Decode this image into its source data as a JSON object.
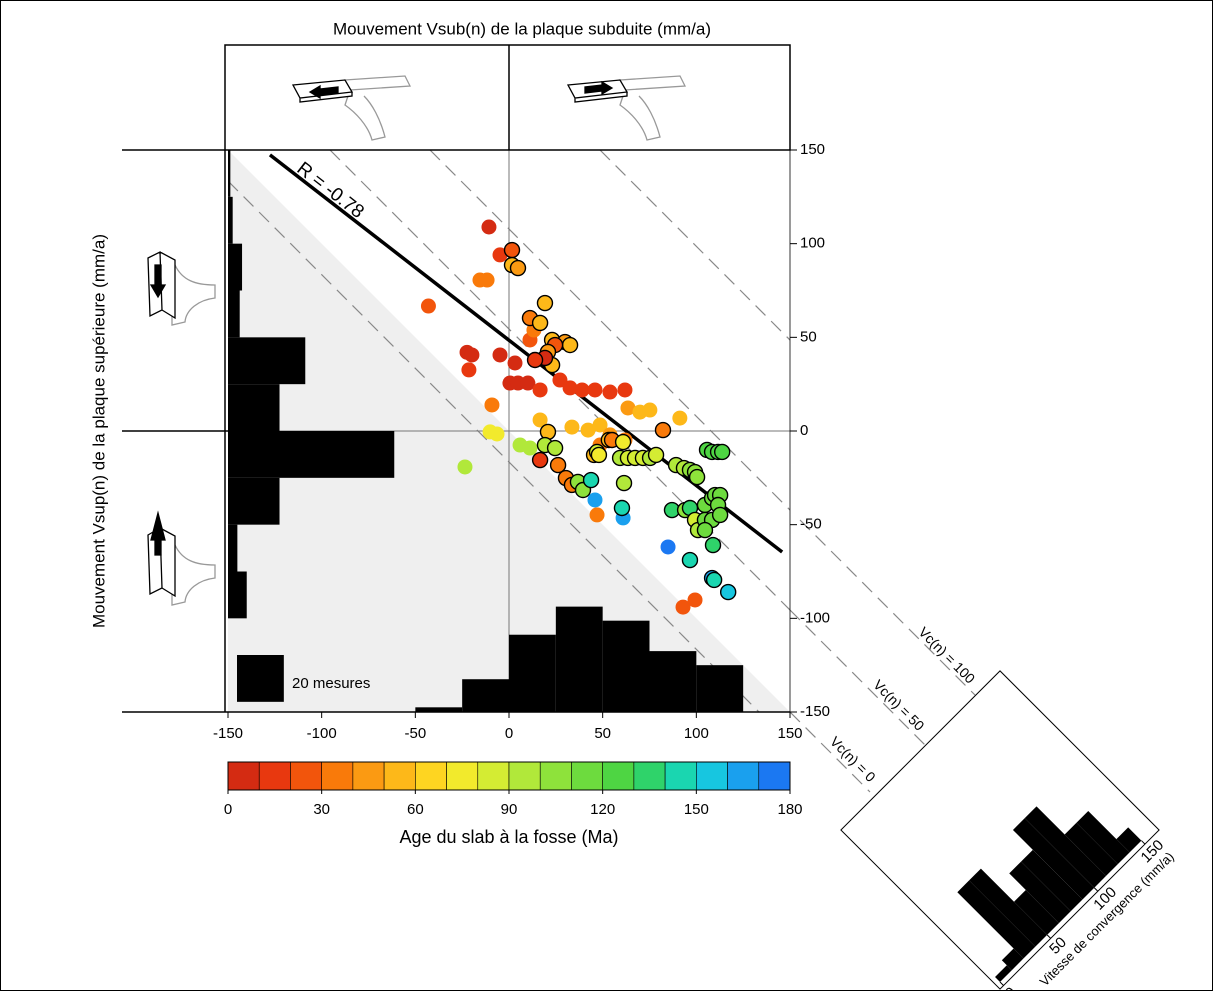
{
  "chart_data": {
    "type": "scatter",
    "title": "Mouvement Vsub(n) de la plaque subduite (mm/a)",
    "y_label": "Mouvement Vsup(n) de la plaque supérieure (mm/a)",
    "xlim": [
      -150,
      150
    ],
    "ylim": [
      -150,
      150
    ],
    "xticks": [
      -150,
      -100,
      -50,
      0,
      50,
      100,
      150
    ],
    "yticks": [
      -150,
      -100,
      -50,
      0,
      50,
      100,
      150
    ],
    "points": {
      "x": [
        -10.7,
        -4.8,
        -15.5,
        -11.7,
        -43,
        -22.4,
        -19.8,
        -21.4,
        -4.8,
        3.2,
        0.5,
        4.8,
        10.1,
        16.6,
        27.2,
        32.6,
        39,
        45.9,
        53.9,
        61.9,
        11.2,
        13.3,
        -9.1,
        16.6,
        33.6,
        42.2,
        48.6,
        63.5,
        69.9,
        75.2,
        91.2,
        53.9,
        48.6,
        61.9,
        -10.1,
        -6.4,
        -23.5,
        5.9,
        11.2,
        45.9,
        47,
        60.9,
        84.9,
        1.6,
        1.6,
        4.8,
        19.2,
        11.2,
        16.6,
        23,
        29.9,
        32.6,
        24.6,
        20.8,
        23,
        19.2,
        13.9,
        82.2,
        20.8,
        19.2,
        24.6,
        16.6,
        26.2,
        30.4,
        33.6,
        36.8,
        39.5,
        43.8,
        45.4,
        47,
        48,
        53.3,
        55,
        60.9,
        59.3,
        63.5,
        67.3,
        71.5,
        75.3,
        78.5,
        61.4,
        60.3,
        89.2,
        93.4,
        96.6,
        99.3,
        100.4,
        105.7,
        108.4,
        111.6,
        113.8,
        87,
        94,
        96.6,
        99.3,
        100.9,
        104.6,
        108.4,
        110,
        112.7,
        111.6,
        104.6,
        108.4,
        112.7,
        104.6,
        108.9,
        96.6,
        108.4,
        109.5,
        117,
        92.9,
        99.3
      ],
      "y": [
        108.9,
        94,
        80.6,
        80.6,
        66.7,
        42,
        40.6,
        32.6,
        40.6,
        36.3,
        25.6,
        25.6,
        25.6,
        21.9,
        27.2,
        23,
        21.9,
        21.9,
        20.8,
        21.9,
        48.6,
        53.9,
        13.9,
        5.9,
        2.1,
        0.5,
        3.2,
        12.3,
        10.1,
        11.2,
        6.9,
        -2.1,
        -7.5,
        -4.8,
        -0.5,
        -1.6,
        -19.2,
        -7.5,
        -9.1,
        -36.8,
        -44.8,
        -46.4,
        -61.9,
        96.6,
        88.6,
        87,
        68.3,
        60.3,
        57.7,
        48.6,
        47.5,
        45.9,
        45.9,
        42.2,
        35.2,
        39,
        37.9,
        0.5,
        -0.5,
        -7.5,
        -9.1,
        -15.5,
        -18.2,
        -25.1,
        -28.8,
        -27.2,
        -31.5,
        -26.2,
        -12.8,
        -11.2,
        -12.8,
        -4.8,
        -4.8,
        -5.9,
        -14.4,
        -14.4,
        -14.4,
        -14.4,
        -14.4,
        -12.8,
        -27.8,
        -41.1,
        -18.2,
        -19.8,
        -20.8,
        -21.9,
        -24.6,
        -10.1,
        -11.2,
        -11.2,
        -11.2,
        -42.2,
        -42.2,
        -41.1,
        -47.5,
        -52.9,
        -39.5,
        -35.8,
        -34.2,
        -34.2,
        -39.5,
        -47.5,
        -47.5,
        -44.8,
        -52.9,
        -60.9,
        -68.9,
        -78.5,
        -79.5,
        -86,
        -94,
        -90.2
      ],
      "age": [
        5,
        12,
        35,
        35,
        25,
        8,
        8,
        10,
        8,
        5,
        5,
        8,
        8,
        10,
        12,
        14,
        14,
        15,
        18,
        18,
        25,
        30,
        35,
        50,
        50,
        50,
        55,
        45,
        55,
        55,
        58,
        48,
        30,
        35,
        70,
        72,
        90,
        92,
        95,
        160,
        35,
        165,
        170,
        20,
        55,
        45,
        50,
        35,
        55,
        50,
        40,
        55,
        20,
        48,
        55,
        8,
        12,
        30,
        58,
        92,
        90,
        15,
        30,
        30,
        30,
        100,
        100,
        140,
        55,
        85,
        78,
        55,
        30,
        70,
        90,
        88,
        88,
        88,
        90,
        88,
        95,
        140,
        95,
        95,
        100,
        100,
        100,
        128,
        128,
        125,
        125,
        135,
        105,
        135,
        80,
        95,
        110,
        110,
        110,
        110,
        110,
        110,
        110,
        110,
        110,
        138,
        140,
        160,
        145,
        155,
        25,
        25
      ],
      "outlined": [
        false,
        false,
        false,
        false,
        false,
        false,
        false,
        false,
        false,
        false,
        false,
        false,
        false,
        false,
        false,
        false,
        false,
        false,
        false,
        false,
        false,
        false,
        false,
        false,
        false,
        false,
        false,
        false,
        false,
        false,
        false,
        false,
        false,
        false,
        false,
        false,
        false,
        false,
        false,
        false,
        false,
        false,
        false,
        true,
        true,
        true,
        true,
        true,
        true,
        true,
        true,
        true,
        true,
        true,
        true,
        true,
        true,
        true,
        true,
        true,
        true,
        true,
        true,
        true,
        true,
        true,
        true,
        true,
        true,
        true,
        true,
        true,
        true,
        true,
        true,
        true,
        true,
        true,
        true,
        true,
        true,
        true,
        true,
        true,
        true,
        true,
        true,
        true,
        true,
        true,
        true,
        true,
        true,
        true,
        true,
        true,
        true,
        true,
        true,
        true,
        true,
        true,
        true,
        true,
        true,
        true,
        true,
        true,
        true,
        true
      ]
    },
    "regression": {
      "label": "R = -0.78",
      "x": [
        -127.6,
        145.8
      ],
      "y": [
        147.4,
        -64.6
      ]
    },
    "histogram_x": {
      "bins": [
        -50,
        -25,
        0,
        25,
        50,
        75,
        100,
        125
      ],
      "counts": [
        2,
        14,
        33,
        45,
        39,
        26,
        20
      ]
    },
    "histogram_y": {
      "bins": [
        -150,
        -125,
        -100,
        -75,
        -50,
        -25,
        0,
        25,
        50,
        75,
        100,
        125,
        150
      ],
      "counts": [
        0,
        0,
        8,
        4,
        22,
        71,
        22,
        33,
        5,
        6,
        2,
        1
      ]
    },
    "scale_label": "20 mesures",
    "scale_count": 20,
    "colorbar": {
      "label": "Age du slab à la fosse (Ma)",
      "lim": [
        0,
        180
      ],
      "ticks": [
        0,
        30,
        60,
        90,
        120,
        150,
        180
      ],
      "colors": [
        "#d42b12",
        "#e8380f",
        "#f2550c",
        "#f97a0a",
        "#fb9a12",
        "#fdb819",
        "#fed521",
        "#f2ea2c",
        "#d4ec33",
        "#b1e83a",
        "#8ee23b",
        "#6ddb3e",
        "#4ed543",
        "#2fd36a",
        "#1ad6b0",
        "#17c6e0",
        "#1aa0ee",
        "#1b78f2"
      ]
    },
    "convergence": {
      "label": "Vitesse de convergence (mm/a)",
      "lim": [
        0,
        150
      ],
      "ticks": [
        0,
        50,
        100,
        150
      ],
      "bins": [
        0,
        12.5,
        25,
        37.5,
        50,
        62.5,
        75,
        87.5,
        100,
        112.5,
        125,
        137.5,
        150
      ],
      "counts": [
        3,
        6,
        40,
        40,
        20,
        30,
        30,
        42,
        42,
        25,
        25,
        8
      ]
    },
    "vc_labels": [
      "Vc(n) = 0",
      "Vc(n) = 50",
      "Vc(n) = 100"
    ]
  }
}
